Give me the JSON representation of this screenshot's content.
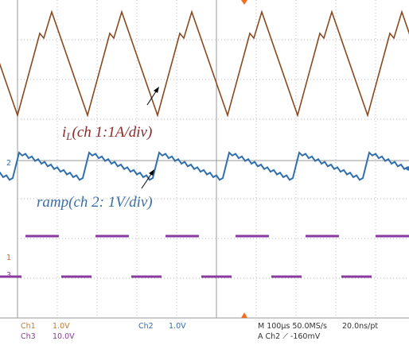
{
  "screen": {
    "annotations": {
      "inductor": {
        "prefix": "i",
        "subscript": "L",
        "suffix": "(ch 1:1A/div)"
      },
      "ramp": "ramp(ch 2: 1V/div)"
    },
    "channel_markers": {
      "ch2": "2",
      "ch1": "1",
      "ch3": "3"
    },
    "status": {
      "ch1_name": "Ch1",
      "ch1_scale": "1.0V",
      "ch3_name": "Ch3",
      "ch3_scale": "10.0V",
      "ch2_name": "Ch2",
      "ch2_scale": "1.0V",
      "timebase": "M 100µs 50.0MS/s",
      "resolution": "20.0ns/pt",
      "trigger": "A Ch2 ⟋ -160mV"
    }
  }
}
